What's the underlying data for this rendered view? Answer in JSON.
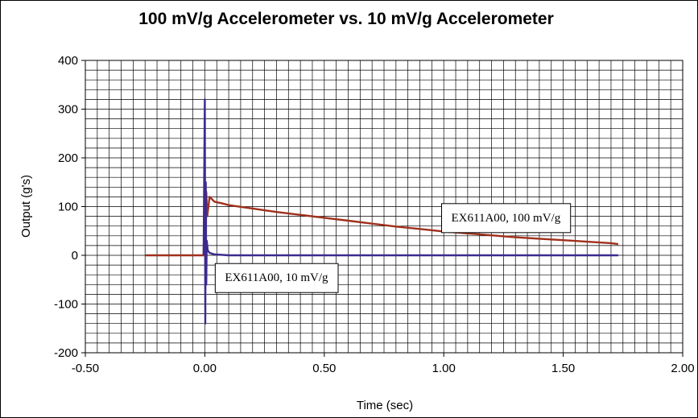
{
  "chart_data": {
    "type": "line",
    "title": "100 mV/g Accelerometer vs. 10 mV/g Accelerometer",
    "xlabel": "Time (sec)",
    "ylabel": "Output (g's)",
    "xlim": [
      -0.5,
      2.0
    ],
    "ylim": [
      -200,
      400
    ],
    "x_ticks": [
      "-0.50",
      "0.00",
      "0.50",
      "1.00",
      "1.50",
      "2.00"
    ],
    "y_ticks": [
      "-200",
      "-100",
      "0",
      "100",
      "200",
      "300",
      "400"
    ],
    "grid": true,
    "series": [
      {
        "name": "EX611A00, 100 mV/g",
        "color": "#a0301c",
        "x": [
          -0.25,
          -0.005,
          0.0,
          0.003,
          0.006,
          0.01,
          0.02,
          0.04,
          0.07,
          0.1,
          0.2,
          0.3,
          0.4,
          0.5,
          0.6,
          0.7,
          0.8,
          0.9,
          1.0,
          1.1,
          1.2,
          1.3,
          1.4,
          1.5,
          1.6,
          1.7,
          1.73
        ],
        "y": [
          0,
          0,
          140,
          -60,
          130,
          80,
          120,
          110,
          107,
          103,
          96,
          89,
          83,
          77,
          71,
          65,
          59,
          54,
          49,
          45,
          41,
          37,
          34,
          31,
          28,
          25,
          23
        ]
      },
      {
        "name": "EX611A00, 10 mV/g",
        "color": "#3c2a8e",
        "x": [
          -0.005,
          0.0,
          0.002,
          0.004,
          0.006,
          0.008,
          0.012,
          0.02,
          0.04,
          0.1,
          0.5,
          1.0,
          1.5,
          1.73
        ],
        "y": [
          0,
          320,
          -140,
          150,
          -60,
          30,
          10,
          5,
          2,
          0,
          0,
          0,
          0,
          0
        ]
      }
    ],
    "annotations": [
      {
        "text": "EX611A00, 100 mV/g",
        "x": 1.26,
        "y": 78
      },
      {
        "text": "EX611A00, 10 mV/g",
        "x": 0.3,
        "y": -45
      }
    ]
  }
}
